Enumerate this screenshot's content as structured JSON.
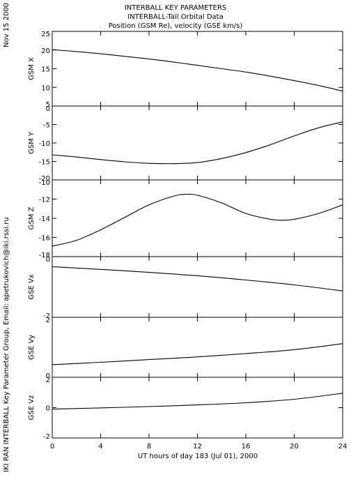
{
  "side_date": "Nov 15 2000",
  "side_credit": "IKI RAN INTERBALL Key Parameter Group, Email: apetrukovich@iki.rssi.ru",
  "chart_data": {
    "type": "line",
    "title": [
      "INTERBALL KEY PARAMETERS",
      "INTERBALL-Tail Orbital Data",
      "Position (GSM Re), velocity (GSE km/s)"
    ],
    "xlabel": "UT hours of day 183 (Jul 01), 2000",
    "xlim": [
      0,
      24
    ],
    "xticks": [
      0,
      4,
      8,
      12,
      16,
      20,
      24
    ],
    "xtick_labels": [
      "0",
      "4",
      "8",
      "12",
      "16",
      "20",
      "24"
    ],
    "panels": [
      {
        "ylabel": "GSM X",
        "ylim": [
          5,
          25
        ],
        "yticks": [
          5,
          10,
          15,
          20,
          25
        ],
        "ytick_labels": [
          "5",
          "10",
          "15",
          "20",
          "25"
        ],
        "x": [
          0,
          2,
          4,
          6,
          8,
          10,
          12,
          14,
          16,
          18,
          20,
          22,
          24
        ],
        "y": [
          20.1,
          19.6,
          19.0,
          18.3,
          17.6,
          16.8,
          15.9,
          15.0,
          14.1,
          13.0,
          11.8,
          10.5,
          9.0
        ]
      },
      {
        "ylabel": "GSM Y",
        "ylim": [
          -20,
          0
        ],
        "yticks": [
          -20,
          -15,
          -10,
          -5,
          0
        ],
        "ytick_labels": [
          "-20",
          "-15",
          "-10",
          "-5",
          "0"
        ],
        "x": [
          0,
          2,
          4,
          6,
          8,
          10,
          12,
          14,
          16,
          18,
          20,
          22,
          24
        ],
        "y": [
          -13.2,
          -13.8,
          -14.5,
          -15.1,
          -15.5,
          -15.6,
          -15.3,
          -14.2,
          -12.6,
          -10.5,
          -8.1,
          -5.9,
          -4.3
        ]
      },
      {
        "ylabel": "GSM Z",
        "ylim": [
          -18,
          -10
        ],
        "yticks": [
          -18,
          -16,
          -14,
          -12,
          -10
        ],
        "ytick_labels": [
          "-18",
          "-16",
          "-14",
          "-12",
          "-10"
        ],
        "x": [
          0,
          2,
          4,
          6,
          8,
          10,
          11,
          12,
          14,
          16,
          18,
          19,
          20,
          22,
          24
        ],
        "y": [
          -16.9,
          -16.3,
          -15.2,
          -13.9,
          -12.6,
          -11.7,
          -11.5,
          -11.6,
          -12.4,
          -13.5,
          -14.1,
          -14.2,
          -14.1,
          -13.5,
          -12.6
        ]
      },
      {
        "ylabel": "GSE Vx",
        "ylim": [
          -2,
          0
        ],
        "yticks": [
          -2,
          0
        ],
        "ytick_labels": [
          "-2",
          "0"
        ],
        "x": [
          0,
          4,
          8,
          12,
          16,
          20,
          24
        ],
        "y": [
          -0.33,
          -0.42,
          -0.52,
          -0.63,
          -0.77,
          -0.93,
          -1.13
        ]
      },
      {
        "ylabel": "GSE Vy",
        "ylim": [
          0,
          2
        ],
        "yticks": [
          0,
          2
        ],
        "ytick_labels": [
          "0",
          "2"
        ],
        "x": [
          0,
          4,
          8,
          12,
          16,
          20,
          24
        ],
        "y": [
          0.42,
          0.5,
          0.59,
          0.68,
          0.79,
          0.92,
          1.12
        ]
      },
      {
        "ylabel": "GSE Vz",
        "ylim": [
          -2,
          2
        ],
        "yticks": [
          -2,
          0,
          2
        ],
        "ytick_labels": [
          "-2",
          "0",
          "2"
        ],
        "x": [
          0,
          4,
          8,
          12,
          16,
          20,
          24
        ],
        "y": [
          -0.1,
          -0.02,
          0.07,
          0.18,
          0.32,
          0.55,
          0.95
        ]
      }
    ]
  }
}
